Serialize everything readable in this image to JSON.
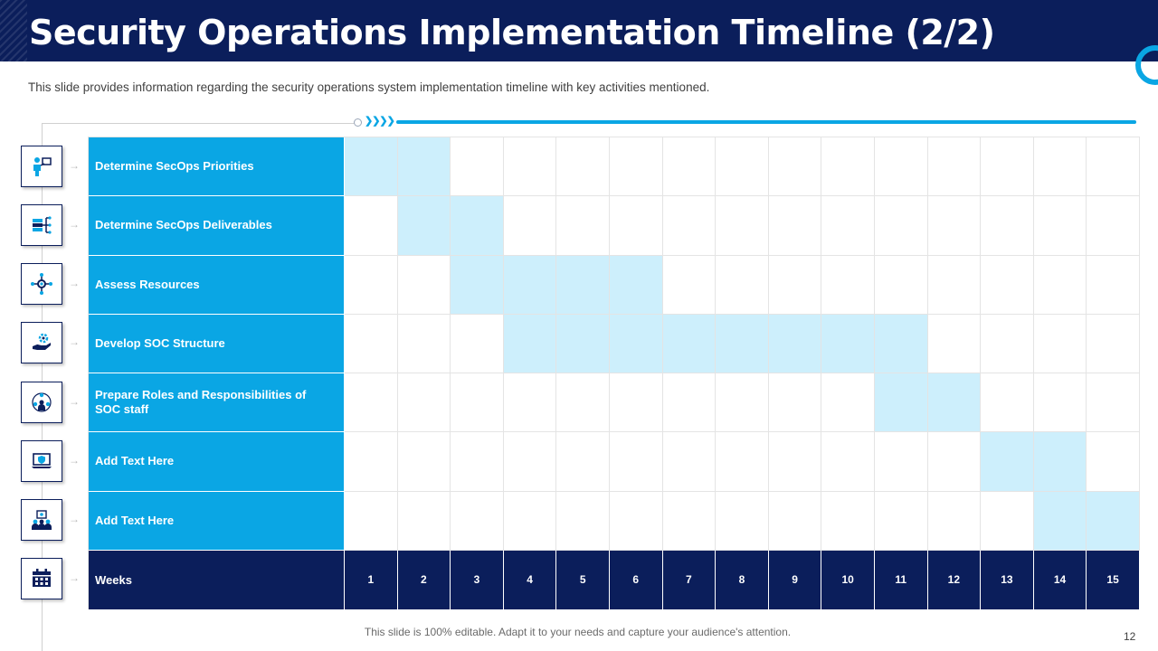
{
  "slide": {
    "title": "Security Operations Implementation Timeline (2/2)",
    "subtitle": "This slide provides information regarding the security operations system implementation timeline with key activities mentioned.",
    "footer": "This slide is 100% editable. Adapt it to your needs and capture your audience's attention.",
    "page_number": "12"
  },
  "colors": {
    "navy": "#0b1e5b",
    "accent_blue": "#0aa6e4",
    "light_fill": "#cdeffc"
  },
  "timeline": {
    "weeks_label": "Weeks",
    "weeks": [
      "1",
      "2",
      "3",
      "4",
      "5",
      "6",
      "7",
      "8",
      "9",
      "10",
      "11",
      "12",
      "13",
      "14",
      "15"
    ],
    "activities": [
      {
        "label": "Determine SecOps Priorities",
        "icon": "presenter-person-icon",
        "active_weeks": [
          1,
          2
        ]
      },
      {
        "label": "Determine SecOps Deliverables",
        "icon": "server-network-icon",
        "active_weeks": [
          2,
          3
        ]
      },
      {
        "label": "Assess Resources",
        "icon": "gear-network-icon",
        "active_weeks": [
          3,
          4,
          5,
          6
        ]
      },
      {
        "label": "Develop SOC Structure",
        "icon": "hand-gear-icon",
        "active_weeks": [
          4,
          5,
          6,
          7,
          8,
          9,
          10,
          11
        ]
      },
      {
        "label": "Prepare Roles and Responsibilities of SOC staff",
        "icon": "team-roles-icon",
        "active_weeks": [
          11,
          12
        ]
      },
      {
        "label": "Add Text Here",
        "icon": "laptop-shield-icon",
        "active_weeks": [
          13,
          14
        ]
      },
      {
        "label": "Add Text Here",
        "icon": "security-team-icon",
        "active_weeks": [
          14,
          15
        ]
      }
    ],
    "weeks_row_icon": "calendar-icon"
  }
}
